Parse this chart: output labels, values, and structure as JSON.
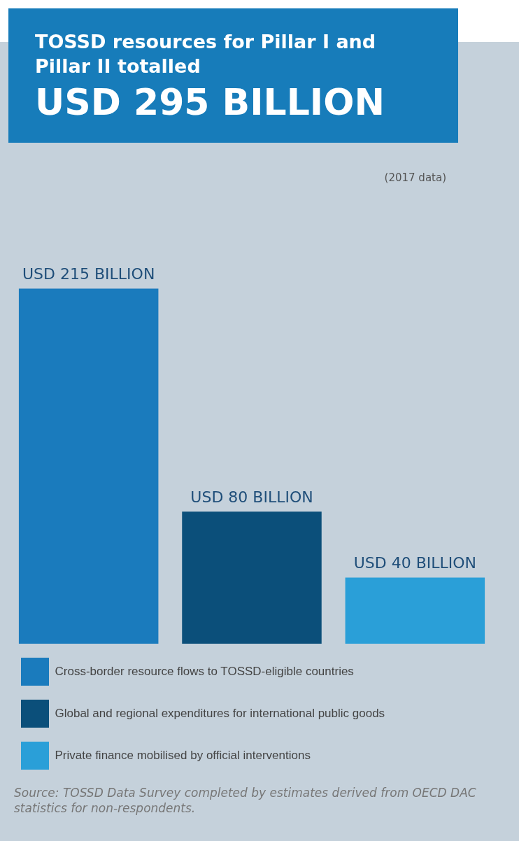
{
  "chart_data": {
    "type": "bar",
    "stacked": true,
    "title": "TOSSD resources for Pillar I and Pillar II totalled",
    "subtitle": "USD 295 BILLION",
    "categories": [
      null,
      null,
      null
    ],
    "series": [
      {
        "name": "Cross-border resource flows to TOSSD-eligible countries",
        "color": "#1a7bbd",
        "values": [
          215,
          null,
          null
        ],
        "value_labels": [
          "USD 215 BILLION",
          null,
          null
        ]
      },
      {
        "name": "Global and regional expenditures for international public goods",
        "color": "#0b4f7a",
        "values": [
          null,
          80,
          null
        ],
        "value_labels": [
          null,
          "USD 80 BILLION",
          null
        ]
      },
      {
        "name": "Private finance mobilised by official interventions",
        "color": "#2a9fd8",
        "values": [
          null,
          null,
          40
        ],
        "value_labels": [
          null,
          null,
          "USD 40 BILLION"
        ]
      }
    ],
    "tick_labels": false,
    "legend": "bottom",
    "annotations": [
      "(2017 data)",
      "Source: TOSSD Data Survey completed by estimates derived from OECD DAC statistics for non-respondents."
    ]
  }
}
